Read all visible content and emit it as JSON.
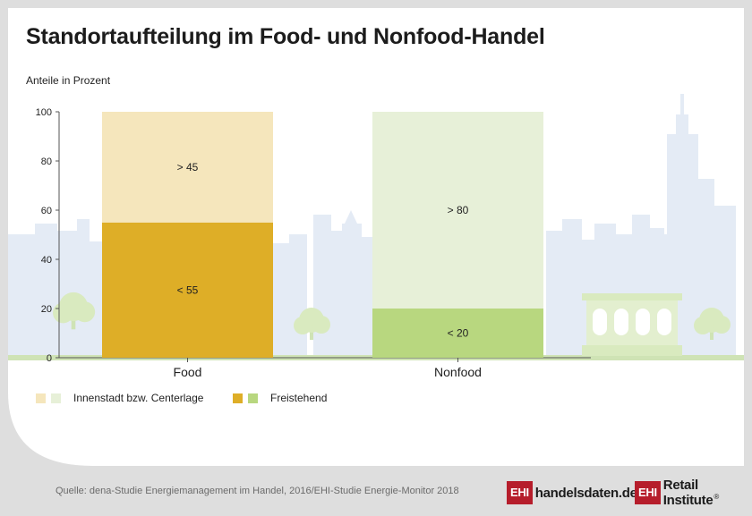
{
  "title": "Standortaufteilung im Food- und Nonfood-Handel",
  "unit_label": "Anteile in Prozent",
  "source": "Quelle: dena-Studie Energiemanagement im Handel, 2016/EHI-Studie Energie-Monitor 2018",
  "logos": {
    "left_box": "EHI",
    "left_name": "handelsdaten.de",
    "right_box": "EHI",
    "right_name": "Retail Institute",
    "right_mark": "®"
  },
  "legend": [
    {
      "label": "Innenstadt bzw. Centerlage",
      "colors": [
        "#f5e6bc",
        "#e7f0d8"
      ]
    },
    {
      "label": "Freistehend",
      "colors": [
        "#deae27",
        "#b8d77f"
      ]
    }
  ],
  "chart_data": {
    "type": "bar",
    "stacked": true,
    "categories": [
      "Food",
      "Nonfood"
    ],
    "ylim": [
      0,
      100
    ],
    "yticks": [
      0,
      20,
      40,
      60,
      80,
      100
    ],
    "ylabel": "Anteile in Prozent",
    "series": [
      {
        "name": "Freistehend",
        "values": [
          55,
          20
        ],
        "labels": [
          "< 55",
          "< 20"
        ],
        "colors": [
          "#deae27",
          "#b8d77f"
        ]
      },
      {
        "name": "Innenstadt bzw. Centerlage",
        "values": [
          45,
          80
        ],
        "labels": [
          "> 45",
          "> 80"
        ],
        "colors": [
          "#f5e6bc",
          "#e7f0d8"
        ]
      }
    ]
  }
}
